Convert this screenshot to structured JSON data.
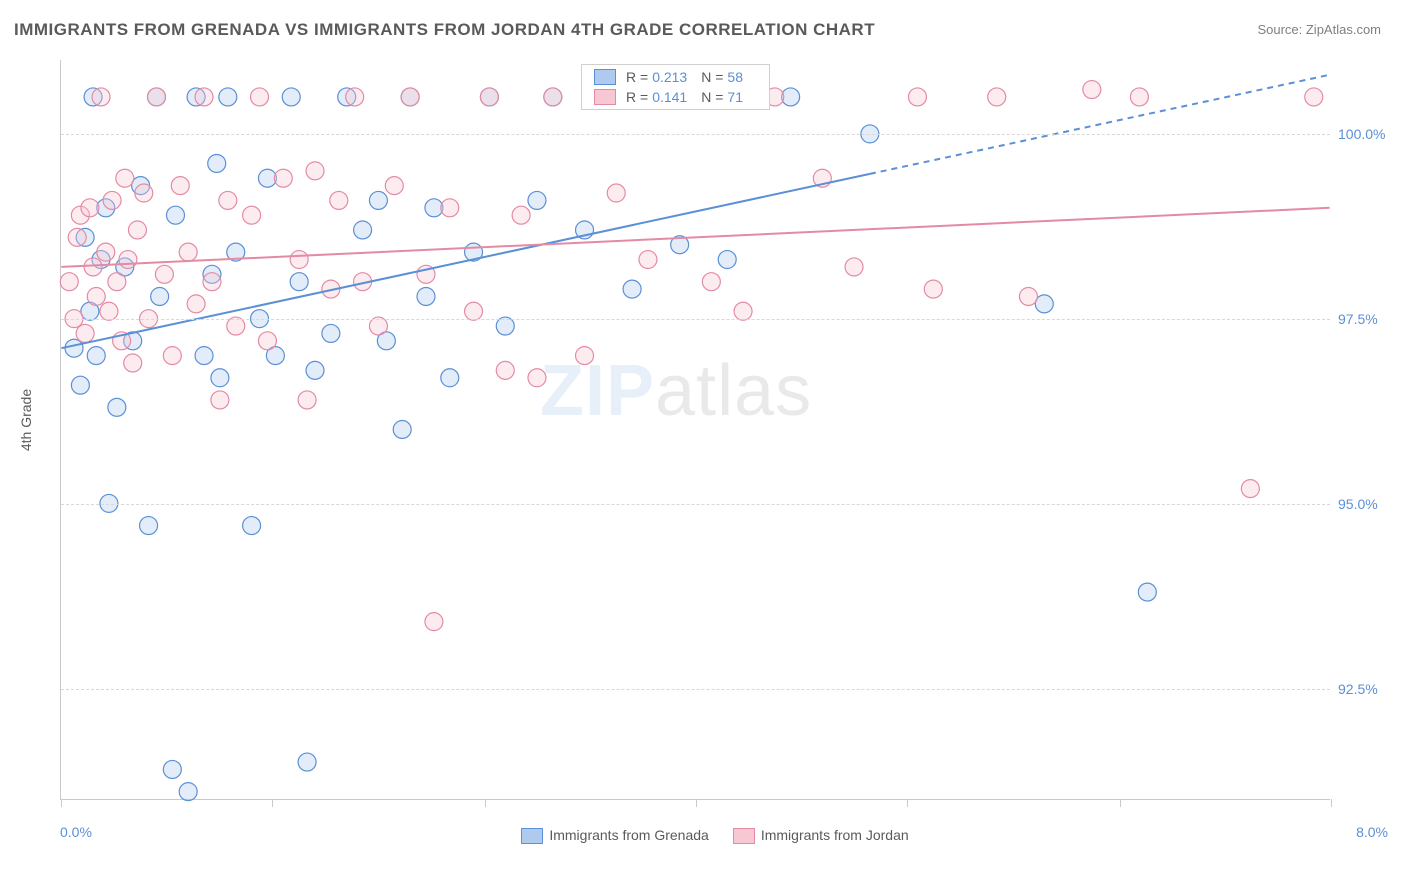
{
  "title": "IMMIGRANTS FROM GRENADA VS IMMIGRANTS FROM JORDAN 4TH GRADE CORRELATION CHART",
  "source_label": "Source: ZipAtlas.com",
  "yaxis_label": "4th Grade",
  "watermark": {
    "bold": "ZIP",
    "rest": "atlas"
  },
  "chart": {
    "type": "scatter-with-regression",
    "background_color": "#ffffff",
    "grid_color": "#d8d8d8",
    "axis_color": "#c9c9c9",
    "text_color": "#5a5a5a",
    "accent_color": "#5b8fd6",
    "xlim": [
      0.0,
      8.0
    ],
    "ylim": [
      91.0,
      101.0
    ],
    "x_tick_positions": [
      0.0,
      1.33,
      2.67,
      4.0,
      5.33,
      6.67,
      8.0
    ],
    "x_min_label": "0.0%",
    "x_max_label": "8.0%",
    "y_ticks": [
      100.0,
      97.5,
      95.0,
      92.5
    ],
    "y_tick_labels": [
      "100.0%",
      "97.5%",
      "95.0%",
      "92.5%"
    ],
    "marker_radius": 9,
    "marker_fill_opacity": 0.35,
    "marker_stroke_width": 1.2,
    "line_width": 2
  },
  "series": [
    {
      "key": "grenada",
      "label": "Immigrants from Grenada",
      "color_stroke": "#5b8fd6",
      "color_fill": "#aecbef",
      "R": "0.213",
      "N": "58",
      "regression": {
        "x1": 0.0,
        "y1": 97.1,
        "x2": 8.0,
        "y2": 100.8,
        "dash_after_x": 5.1
      },
      "points": [
        [
          0.08,
          97.1
        ],
        [
          0.12,
          96.6
        ],
        [
          0.15,
          98.6
        ],
        [
          0.18,
          97.6
        ],
        [
          0.2,
          100.5
        ],
        [
          0.22,
          97.0
        ],
        [
          0.25,
          98.3
        ],
        [
          0.28,
          99.0
        ],
        [
          0.3,
          95.0
        ],
        [
          0.35,
          96.3
        ],
        [
          0.4,
          98.2
        ],
        [
          0.45,
          97.2
        ],
        [
          0.5,
          99.3
        ],
        [
          0.55,
          94.7
        ],
        [
          0.6,
          100.5
        ],
        [
          0.62,
          97.8
        ],
        [
          0.7,
          91.4
        ],
        [
          0.72,
          98.9
        ],
        [
          0.8,
          91.1
        ],
        [
          0.85,
          100.5
        ],
        [
          0.9,
          97.0
        ],
        [
          0.95,
          98.1
        ],
        [
          0.98,
          99.6
        ],
        [
          1.0,
          96.7
        ],
        [
          1.05,
          100.5
        ],
        [
          1.1,
          98.4
        ],
        [
          1.2,
          94.7
        ],
        [
          1.25,
          97.5
        ],
        [
          1.3,
          99.4
        ],
        [
          1.35,
          97.0
        ],
        [
          1.45,
          100.5
        ],
        [
          1.5,
          98.0
        ],
        [
          1.55,
          91.5
        ],
        [
          1.6,
          96.8
        ],
        [
          1.7,
          97.3
        ],
        [
          1.8,
          100.5
        ],
        [
          1.9,
          98.7
        ],
        [
          2.0,
          99.1
        ],
        [
          2.05,
          97.2
        ],
        [
          2.15,
          96.0
        ],
        [
          2.2,
          100.5
        ],
        [
          2.3,
          97.8
        ],
        [
          2.35,
          99.0
        ],
        [
          2.45,
          96.7
        ],
        [
          2.6,
          98.4
        ],
        [
          2.7,
          100.5
        ],
        [
          2.8,
          97.4
        ],
        [
          3.0,
          99.1
        ],
        [
          3.1,
          100.5
        ],
        [
          3.3,
          98.7
        ],
        [
          3.6,
          97.9
        ],
        [
          3.9,
          98.5
        ],
        [
          4.0,
          100.5
        ],
        [
          4.2,
          98.3
        ],
        [
          4.6,
          100.5
        ],
        [
          5.1,
          100.0
        ],
        [
          6.2,
          97.7
        ],
        [
          6.85,
          93.8
        ]
      ]
    },
    {
      "key": "jordan",
      "label": "Immigrants from Jordan",
      "color_stroke": "#e58aa3",
      "color_fill": "#f7c8d4",
      "R": "0.141",
      "N": "71",
      "regression": {
        "x1": 0.0,
        "y1": 98.2,
        "x2": 8.0,
        "y2": 99.0
      },
      "points": [
        [
          0.05,
          98.0
        ],
        [
          0.08,
          97.5
        ],
        [
          0.1,
          98.6
        ],
        [
          0.12,
          98.9
        ],
        [
          0.15,
          97.3
        ],
        [
          0.18,
          99.0
        ],
        [
          0.2,
          98.2
        ],
        [
          0.22,
          97.8
        ],
        [
          0.25,
          100.5
        ],
        [
          0.28,
          98.4
        ],
        [
          0.3,
          97.6
        ],
        [
          0.32,
          99.1
        ],
        [
          0.35,
          98.0
        ],
        [
          0.38,
          97.2
        ],
        [
          0.4,
          99.4
        ],
        [
          0.42,
          98.3
        ],
        [
          0.45,
          96.9
        ],
        [
          0.48,
          98.7
        ],
        [
          0.52,
          99.2
        ],
        [
          0.55,
          97.5
        ],
        [
          0.6,
          100.5
        ],
        [
          0.65,
          98.1
        ],
        [
          0.7,
          97.0
        ],
        [
          0.75,
          99.3
        ],
        [
          0.8,
          98.4
        ],
        [
          0.85,
          97.7
        ],
        [
          0.9,
          100.5
        ],
        [
          0.95,
          98.0
        ],
        [
          1.0,
          96.4
        ],
        [
          1.05,
          99.1
        ],
        [
          1.1,
          97.4
        ],
        [
          1.2,
          98.9
        ],
        [
          1.25,
          100.5
        ],
        [
          1.3,
          97.2
        ],
        [
          1.4,
          99.4
        ],
        [
          1.5,
          98.3
        ],
        [
          1.55,
          96.4
        ],
        [
          1.6,
          99.5
        ],
        [
          1.7,
          97.9
        ],
        [
          1.75,
          99.1
        ],
        [
          1.85,
          100.5
        ],
        [
          1.9,
          98.0
        ],
        [
          2.0,
          97.4
        ],
        [
          2.1,
          99.3
        ],
        [
          2.2,
          100.5
        ],
        [
          2.3,
          98.1
        ],
        [
          2.35,
          93.4
        ],
        [
          2.45,
          99.0
        ],
        [
          2.6,
          97.6
        ],
        [
          2.7,
          100.5
        ],
        [
          2.8,
          96.8
        ],
        [
          2.9,
          98.9
        ],
        [
          3.0,
          96.7
        ],
        [
          3.1,
          100.5
        ],
        [
          3.3,
          97.0
        ],
        [
          3.5,
          99.2
        ],
        [
          3.7,
          98.3
        ],
        [
          3.9,
          100.5
        ],
        [
          4.1,
          98.0
        ],
        [
          4.3,
          97.6
        ],
        [
          4.5,
          100.5
        ],
        [
          4.8,
          99.4
        ],
        [
          5.0,
          98.2
        ],
        [
          5.4,
          100.5
        ],
        [
          5.5,
          97.9
        ],
        [
          5.9,
          100.5
        ],
        [
          6.1,
          97.8
        ],
        [
          6.5,
          100.6
        ],
        [
          6.8,
          100.5
        ],
        [
          7.5,
          95.2
        ],
        [
          7.9,
          100.5
        ]
      ]
    }
  ],
  "legend_bottom": {
    "items": [
      {
        "label": "Immigrants from Grenada",
        "fill": "#aecbef",
        "stroke": "#5b8fd6"
      },
      {
        "label": "Immigrants from Jordan",
        "fill": "#f7c8d4",
        "stroke": "#e58aa3"
      }
    ]
  },
  "stats_box": {
    "rows": [
      {
        "fill": "#aecbef",
        "stroke": "#5b8fd6",
        "R_label": "R =",
        "R": "0.213",
        "N_label": "N =",
        "N": "58"
      },
      {
        "fill": "#f7c8d4",
        "stroke": "#e58aa3",
        "R_label": "R =",
        "R": "0.141",
        "N_label": "N =",
        "N": "71"
      }
    ]
  }
}
